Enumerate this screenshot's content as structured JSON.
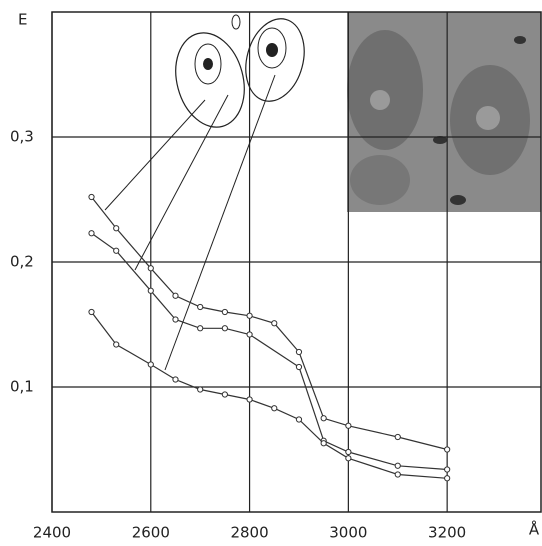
{
  "chart_data": {
    "type": "line",
    "y_label": "E",
    "x_label": "Å",
    "xlim": [
      2400,
      3390
    ],
    "ylim": [
      0,
      0.4
    ],
    "xticks": [
      2400,
      2600,
      2800,
      3000,
      3200
    ],
    "yticks": [
      {
        "value": 0.1,
        "label": "0,1"
      },
      {
        "value": 0.2,
        "label": "0,2"
      },
      {
        "value": 0.3,
        "label": "0,3"
      }
    ],
    "grid": true,
    "series": [
      {
        "color": "#333333",
        "x": [
          2480,
          2530,
          2600,
          2650,
          2700,
          2750,
          2800,
          2850,
          2900,
          2950,
          3000,
          3100,
          3200
        ],
        "values": [
          0.252,
          0.227,
          0.195,
          0.173,
          0.164,
          0.16,
          0.157,
          0.151,
          0.128,
          0.075,
          0.069,
          0.06,
          0.05
        ]
      },
      {
        "color": "#333333",
        "x": [
          2480,
          2530,
          2600,
          2650,
          2700,
          2750,
          2800,
          2900,
          2950,
          3000,
          3100,
          3200
        ],
        "values": [
          0.223,
          0.209,
          0.177,
          0.154,
          0.147,
          0.147,
          0.142,
          0.116,
          0.057,
          0.048,
          0.037,
          0.034
        ]
      },
      {
        "color": "#333333",
        "x": [
          2480,
          2530,
          2600,
          2650,
          2700,
          2750,
          2800,
          2850,
          2900,
          2950,
          3000,
          3100,
          3200
        ],
        "values": [
          0.16,
          0.134,
          0.118,
          0.106,
          0.098,
          0.094,
          0.09,
          0.083,
          0.074,
          0.055,
          0.043,
          0.03,
          0.027
        ]
      }
    ]
  }
}
